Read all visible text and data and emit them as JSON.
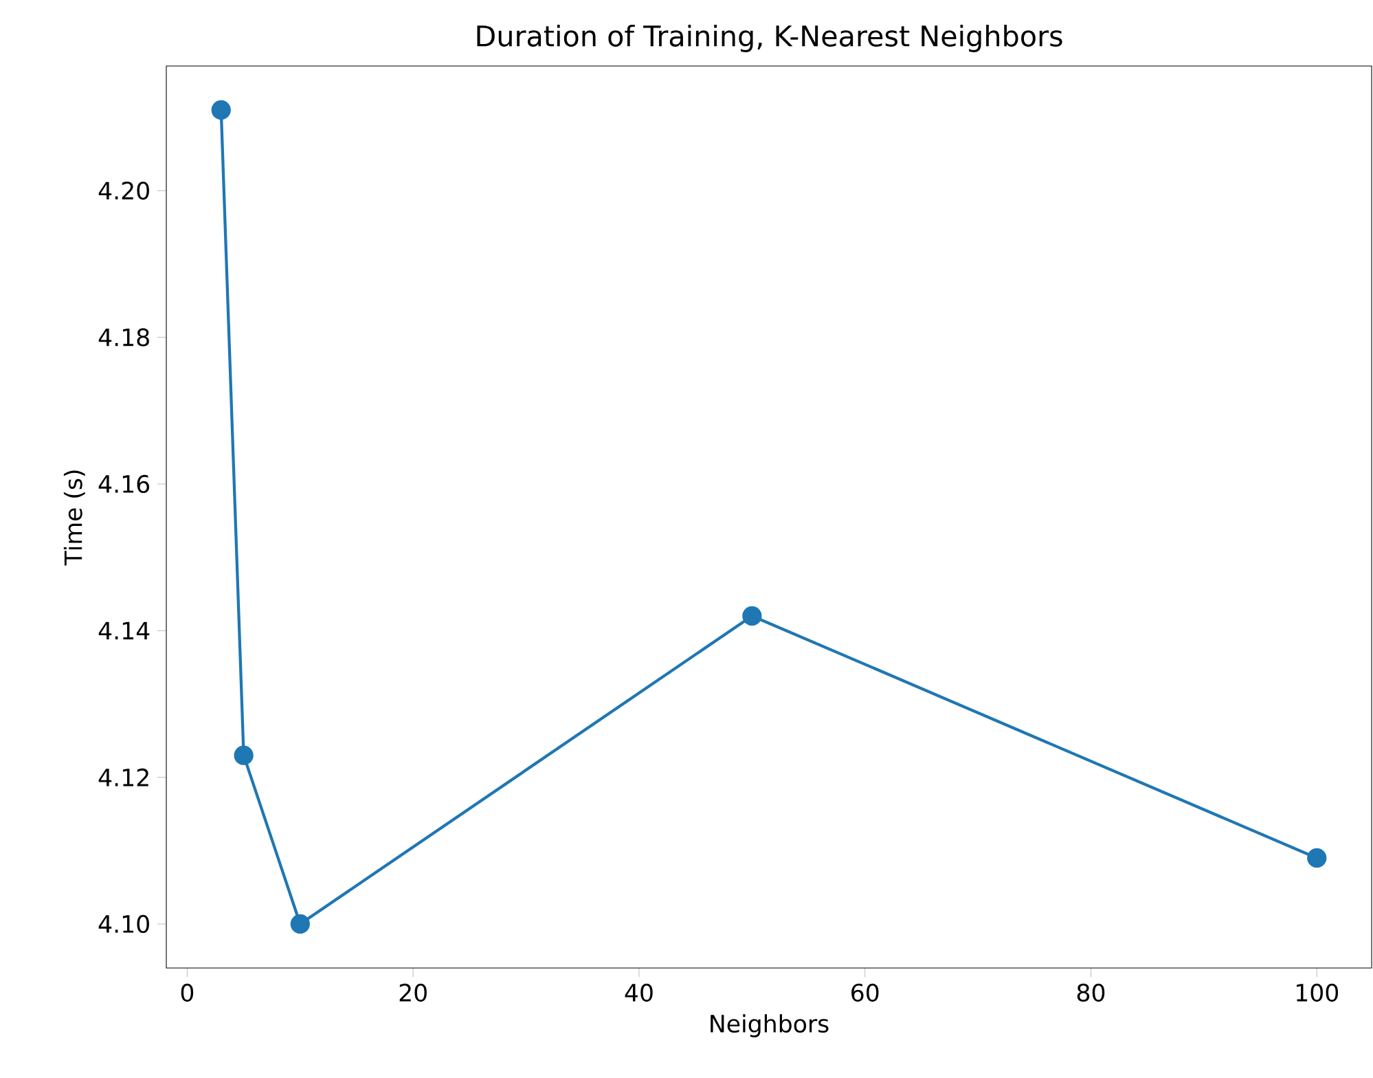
{
  "chart_data": {
    "type": "line",
    "title": "Duration of Training, K-Nearest Neighbors",
    "xlabel": "Neighbors",
    "ylabel": "Time (s)",
    "x": [
      3,
      5,
      10,
      50,
      100
    ],
    "values": [
      4.211,
      4.123,
      4.1,
      4.142,
      4.109
    ],
    "color": "#1f77b4",
    "marker": "circle",
    "line_style": "solid",
    "xlim": [
      -1.85,
      104.85
    ],
    "ylim": [
      4.094,
      4.217
    ],
    "xticks": [
      0,
      20,
      40,
      60,
      80,
      100
    ],
    "yticks": [
      {
        "value": 4.1,
        "label": "4.10"
      },
      {
        "value": 4.12,
        "label": "4.12"
      },
      {
        "value": 4.14,
        "label": "4.14"
      },
      {
        "value": 4.16,
        "label": "4.16"
      },
      {
        "value": 4.18,
        "label": "4.18"
      },
      {
        "value": 4.2,
        "label": "4.20"
      }
    ]
  }
}
